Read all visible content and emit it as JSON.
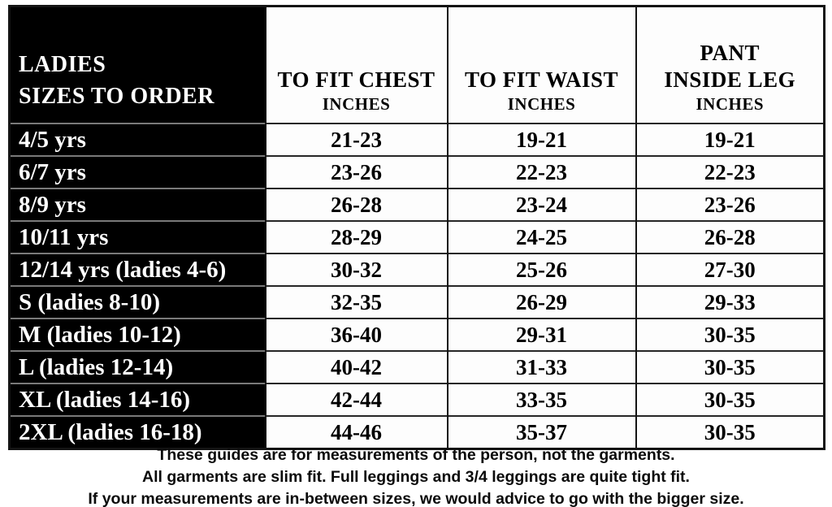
{
  "chart_data": {
    "type": "table",
    "title": "LADIES SIZES TO ORDER",
    "header": {
      "size_line1": "LADIES",
      "size_line2": "SIZES TO ORDER",
      "columns": [
        {
          "line1": "",
          "line2": "TO FIT CHEST",
          "unit": "INCHES"
        },
        {
          "line1": "",
          "line2": "TO FIT WAIST",
          "unit": "INCHES"
        },
        {
          "line1": "PANT",
          "line2": "INSIDE LEG",
          "unit": "INCHES"
        }
      ]
    },
    "rows": [
      {
        "size": "4/5 yrs",
        "chest": "21-23",
        "waist": "19-21",
        "leg": "19-21"
      },
      {
        "size": "6/7 yrs",
        "chest": "23-26",
        "waist": "22-23",
        "leg": "22-23"
      },
      {
        "size": "8/9 yrs",
        "chest": "26-28",
        "waist": "23-24",
        "leg": "23-26"
      },
      {
        "size": "10/11 yrs",
        "chest": "28-29",
        "waist": "24-25",
        "leg": "26-28"
      },
      {
        "size": "12/14 yrs (ladies 4-6)",
        "chest": "30-32",
        "waist": "25-26",
        "leg": "27-30"
      },
      {
        "size": "S (ladies 8-10)",
        "chest": "32-35",
        "waist": "26-29",
        "leg": "29-33"
      },
      {
        "size": "M (ladies 10-12)",
        "chest": "36-40",
        "waist": "29-31",
        "leg": "30-35"
      },
      {
        "size": "L (ladies 12-14)",
        "chest": "40-42",
        "waist": "31-33",
        "leg": "30-35"
      },
      {
        "size": "XL (ladies 14-16)",
        "chest": "42-44",
        "waist": "33-35",
        "leg": "30-35"
      },
      {
        "size": "2XL (ladies 16-18)",
        "chest": "44-46",
        "waist": "35-37",
        "leg": "30-35"
      }
    ]
  },
  "notes": {
    "line1": "These guides are for measurements of the person, not the garments.",
    "line2": "All garments are slim fit. Full leggings and 3/4 leggings are quite tight fit.",
    "line3": "If your measurements are in-between sizes, we would advice to go with the bigger size."
  },
  "colors": {
    "size_column_bg": "#000000",
    "size_column_text": "#ffffff",
    "value_cell_bg": "#fdfdfd",
    "value_cell_text": "#000000",
    "border_dark": "#141414",
    "row_separator_on_black": "#7a7a7a"
  }
}
